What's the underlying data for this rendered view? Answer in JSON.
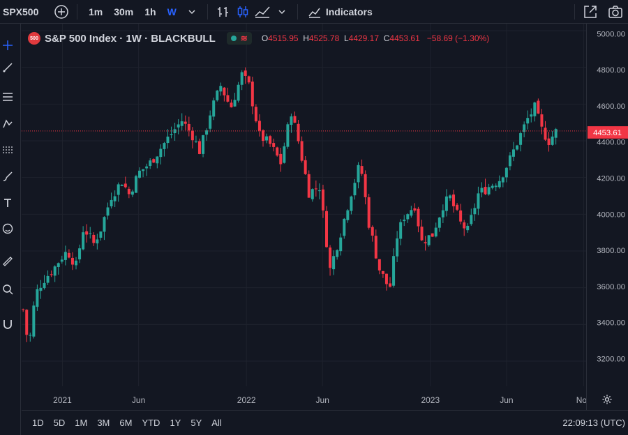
{
  "toolbar": {
    "symbol": "SPX500",
    "timeframes": [
      "1m",
      "30m",
      "1h",
      "W"
    ],
    "active_timeframe": "W",
    "indicators_label": "Indicators"
  },
  "legend": {
    "badge": "500",
    "title": "S&P 500 Index · 1W · BLACKBULL",
    "o_key": "O",
    "o_val": "4515.95",
    "h_key": "H",
    "h_val": "4525.78",
    "l_key": "L",
    "l_val": "4429.17",
    "c_key": "C",
    "c_val": "4453.61",
    "change": "−58.69 (−1.30%)"
  },
  "bottombar": {
    "ranges": [
      "1D",
      "5D",
      "1M",
      "3M",
      "6M",
      "YTD",
      "1Y",
      "5Y",
      "All"
    ],
    "clock": "22:09:13 (UTC)"
  },
  "colors": {
    "up": "#26a69a",
    "down": "#f23645",
    "background": "#131722",
    "grid": "#1e222d",
    "price_line": "#f23645"
  },
  "chart_data": {
    "type": "candlestick",
    "title": "S&P 500 Index · 1W · BLACKBULL",
    "ylim": [
      3100,
      5000
    ],
    "y_ticks": [
      3200,
      3400,
      3600,
      3800,
      4000,
      4200,
      4400,
      4600,
      4800,
      5000
    ],
    "y_tick_labels": [
      "3200.00",
      "3400.00",
      "3600.00",
      "3800.00",
      "4000.00",
      "4200.00",
      "4400.00",
      "4600.00",
      "4800.00",
      "5000.00"
    ],
    "x_tick_labels": [
      "2021",
      "Jun",
      "2022",
      "Jun",
      "2023",
      "Jun",
      "Nov"
    ],
    "x_tick_dates": [
      "2021-01-01",
      "2021-06-01",
      "2022-01-01",
      "2022-06-01",
      "2023-01-01",
      "2023-06-01",
      "2023-11-01"
    ],
    "x_range": [
      "2020-10-12",
      "2023-11-06"
    ],
    "current_price": 4453.61,
    "current_price_label": "4453.61",
    "grid": true,
    "close_series": {
      "name": "",
      "points": [
        [
          "2020-10-15",
          3480
        ],
        [
          "2020-10-26",
          3270
        ],
        [
          "2020-11-08",
          3560
        ],
        [
          "2020-11-23",
          3640
        ],
        [
          "2020-12-14",
          3700
        ],
        [
          "2020-12-28",
          3760
        ],
        [
          "2021-01-11",
          3800
        ],
        [
          "2021-01-28",
          3720
        ],
        [
          "2021-02-12",
          3930
        ],
        [
          "2021-03-04",
          3840
        ],
        [
          "2021-03-18",
          3920
        ],
        [
          "2021-04-08",
          4100
        ],
        [
          "2021-04-29",
          4180
        ],
        [
          "2021-05-13",
          4110
        ],
        [
          "2021-06-03",
          4230
        ],
        [
          "2021-06-24",
          4280
        ],
        [
          "2021-07-15",
          4360
        ],
        [
          "2021-08-05",
          4440
        ],
        [
          "2021-08-26",
          4510
        ],
        [
          "2021-09-16",
          4430
        ],
        [
          "2021-10-01",
          4340
        ],
        [
          "2021-10-21",
          4550
        ],
        [
          "2021-11-11",
          4700
        ],
        [
          "2021-12-01",
          4580
        ],
        [
          "2021-12-23",
          4760
        ],
        [
          "2022-01-06",
          4700
        ],
        [
          "2022-01-27",
          4430
        ],
        [
          "2022-02-17",
          4380
        ],
        [
          "2022-03-10",
          4280
        ],
        [
          "2022-03-31",
          4560
        ],
        [
          "2022-04-14",
          4400
        ],
        [
          "2022-05-05",
          4120
        ],
        [
          "2022-05-26",
          4150
        ],
        [
          "2022-06-16",
          3700
        ],
        [
          "2022-07-07",
          3900
        ],
        [
          "2022-07-28",
          4120
        ],
        [
          "2022-08-15",
          4280
        ],
        [
          "2022-09-01",
          3950
        ],
        [
          "2022-09-22",
          3700
        ],
        [
          "2022-10-12",
          3590
        ],
        [
          "2022-10-27",
          3880
        ],
        [
          "2022-11-10",
          3990
        ],
        [
          "2022-12-01",
          4050
        ],
        [
          "2022-12-15",
          3850
        ],
        [
          "2023-01-05",
          3890
        ],
        [
          "2023-01-26",
          4050
        ],
        [
          "2023-02-09",
          4090
        ],
        [
          "2023-03-02",
          3950
        ],
        [
          "2023-03-16",
          3910
        ],
        [
          "2023-04-06",
          4110
        ],
        [
          "2023-04-27",
          4150
        ],
        [
          "2023-05-18",
          4190
        ],
        [
          "2023-06-08",
          4300
        ],
        [
          "2023-06-22",
          4390
        ],
        [
          "2023-07-13",
          4520
        ],
        [
          "2023-07-27",
          4580
        ],
        [
          "2023-08-10",
          4460
        ],
        [
          "2023-08-24",
          4400
        ],
        [
          "2023-09-07",
          4450
        ]
      ]
    }
  }
}
